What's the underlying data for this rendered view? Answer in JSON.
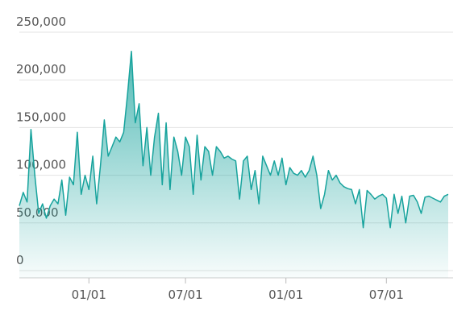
{
  "chart_data": {
    "type": "area",
    "color": "#17a39d",
    "grid": true,
    "categories": [
      null,
      null,
      null,
      null,
      null,
      null,
      null,
      null,
      null,
      null,
      null,
      null,
      null,
      null,
      null,
      null,
      null,
      null,
      "01/01",
      null,
      null,
      null,
      null,
      null,
      null,
      null,
      null,
      null,
      null,
      null,
      null,
      null,
      null,
      null,
      null,
      null,
      null,
      null,
      null,
      null,
      null,
      null,
      null,
      "07/01",
      null,
      null,
      null,
      null,
      null,
      null,
      null,
      null,
      null,
      null,
      null,
      null,
      null,
      null,
      null,
      null,
      null,
      null,
      null,
      null,
      null,
      null,
      null,
      null,
      null,
      "01/01",
      null,
      null,
      null,
      null,
      null,
      null,
      null,
      null,
      null,
      null,
      null,
      null,
      null,
      null,
      null,
      null,
      null,
      null,
      null,
      null,
      null,
      null,
      null,
      null,
      null,
      "07/01",
      null,
      null,
      null,
      null,
      null,
      null,
      null,
      null,
      null,
      null,
      null,
      null,
      null,
      null,
      null,
      null
    ],
    "values": [
      68000,
      82000,
      72000,
      148000,
      100000,
      60000,
      70000,
      55000,
      68000,
      75000,
      70000,
      95000,
      58000,
      98000,
      90000,
      145000,
      80000,
      100000,
      85000,
      120000,
      70000,
      110000,
      158000,
      120000,
      130000,
      140000,
      135000,
      145000,
      185000,
      230000,
      155000,
      175000,
      110000,
      150000,
      100000,
      140000,
      165000,
      90000,
      155000,
      85000,
      140000,
      125000,
      100000,
      140000,
      130000,
      80000,
      142000,
      95000,
      130000,
      125000,
      100000,
      130000,
      125000,
      118000,
      120000,
      117000,
      115000,
      75000,
      115000,
      120000,
      85000,
      105000,
      70000,
      120000,
      110000,
      100000,
      115000,
      100000,
      118000,
      90000,
      108000,
      102000,
      100000,
      105000,
      98000,
      105000,
      120000,
      100000,
      65000,
      80000,
      105000,
      95000,
      100000,
      92000,
      88000,
      86000,
      85000,
      70000,
      85000,
      45000,
      84000,
      80000,
      75000,
      78000,
      80000,
      76000,
      45000,
      80000,
      60000,
      78000,
      50000,
      78000,
      79000,
      72000,
      60000,
      77000,
      78000,
      76000,
      74000,
      72000,
      78000,
      80000
    ],
    "ylim": [
      0,
      250000
    ],
    "yticks": [
      0,
      {
        "value": 50000,
        "label": "50,000"
      },
      {
        "value": 100000,
        "label": "100,000"
      },
      {
        "value": 150000,
        "label": "150,000"
      },
      {
        "value": 200000,
        "label": "200,000"
      },
      {
        "value": 250000,
        "label": "250,000"
      }
    ]
  }
}
